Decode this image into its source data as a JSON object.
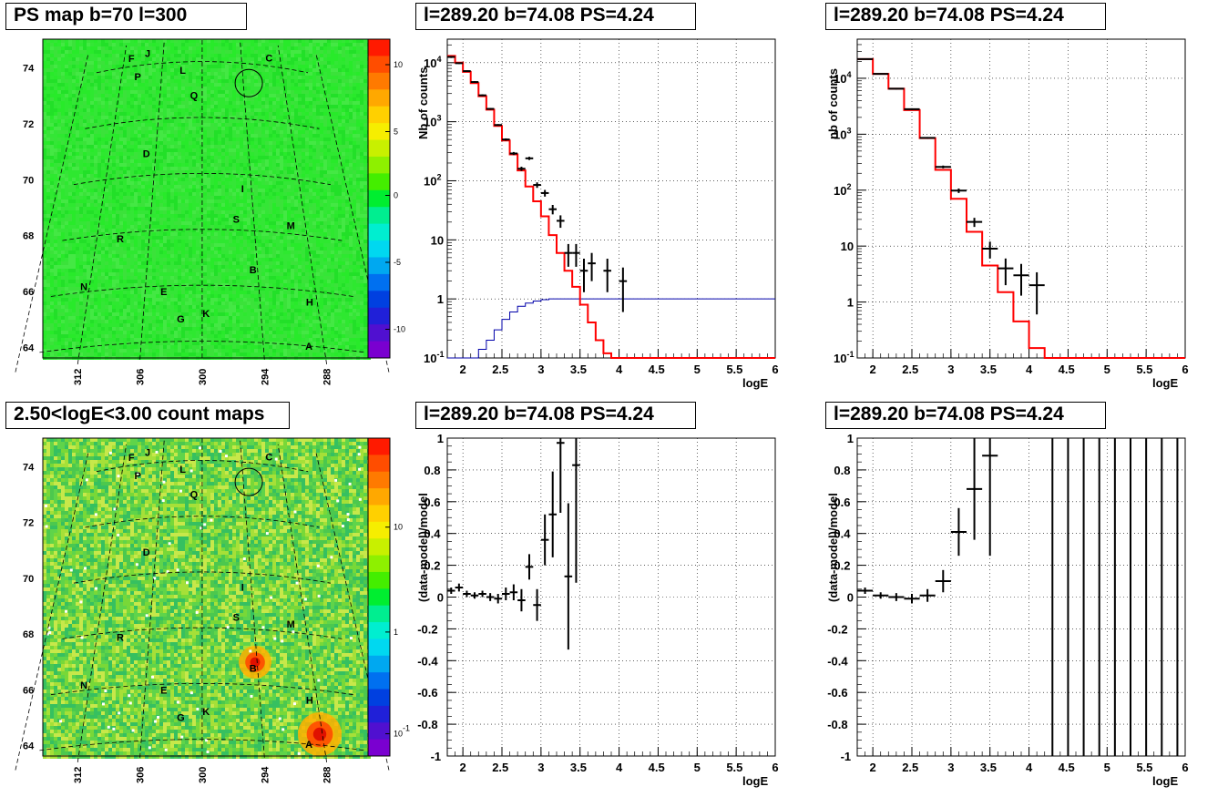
{
  "titles": {
    "map1": "PS map b=70 l=300",
    "map2": "2.50<logE<3.00 count maps",
    "plot1": "l=289.20 b=74.08 PS=4.24",
    "plot2": "l=289.20 b=74.08 PS=4.24",
    "plot3": "l=289.20 b=74.08 PS=4.24",
    "plot4": "l=289.20 b=74.08 PS=4.24"
  },
  "maps": {
    "y_ticks": [
      "74",
      "72",
      "70",
      "68",
      "66",
      "64"
    ],
    "x_ticks": [
      "312",
      "306",
      "300",
      "294",
      "288"
    ],
    "sources": [
      {
        "id": "F",
        "l": 310.8,
        "b": 74.3
      },
      {
        "id": "J",
        "l": 308.3,
        "b": 74.4
      },
      {
        "id": "P",
        "l": 309.5,
        "b": 73.6
      },
      {
        "id": "L",
        "l": 302.8,
        "b": 73.7
      },
      {
        "id": "C",
        "l": 289.7,
        "b": 74.3
      },
      {
        "id": "Q",
        "l": 301.2,
        "b": 72.8
      },
      {
        "id": "D",
        "l": 307.2,
        "b": 70.8
      },
      {
        "id": "I",
        "l": 294.8,
        "b": 69.5
      },
      {
        "id": "S",
        "l": 296.0,
        "b": 68.4
      },
      {
        "id": "M",
        "l": 289.8,
        "b": 68.3
      },
      {
        "id": "R",
        "l": 309.3,
        "b": 67.8
      },
      {
        "id": "B",
        "l": 294.5,
        "b": 66.6
      },
      {
        "id": "N",
        "l": 312.6,
        "b": 66.2
      },
      {
        "id": "E",
        "l": 304.0,
        "b": 65.8
      },
      {
        "id": "H",
        "l": 288.8,
        "b": 65.6
      },
      {
        "id": "G",
        "l": 302.2,
        "b": 64.8
      },
      {
        "id": "K",
        "l": 299.6,
        "b": 65.0
      },
      {
        "id": "A",
        "l": 289.5,
        "b": 64.0
      }
    ],
    "circle": {
      "l": 293.2,
      "b": 73.3
    },
    "ps_colorbar_ticks": [
      "10",
      "5",
      "0",
      "-5",
      "-10"
    ],
    "count_colorbar_ticks": [
      "10",
      "1",
      "10^-1"
    ],
    "colors": {
      "ps_background": "#2ee830",
      "count_background": "#5fd44a",
      "hot": "#ff2a00",
      "grid": "#000000"
    }
  },
  "chart_data": [
    {
      "type": "line",
      "id": "plot1",
      "title": "l=289.20 b=74.08 PS=4.24",
      "xlabel": "logE",
      "ylabel": "Nb of counts",
      "yscale": "log",
      "xlim": [
        1.8,
        6.0
      ],
      "ylim": [
        0.1,
        25000
      ],
      "grid": true,
      "x_ticks": [
        "2",
        "2.5",
        "3",
        "3.5",
        "4",
        "4.5",
        "5",
        "5.5",
        "6"
      ],
      "y_ticks": [
        "10^-1",
        "1",
        "10",
        "10^2",
        "10^3",
        "10^4"
      ],
      "model_step": {
        "color": "#ff0000",
        "bin_edges": [
          1.8,
          1.9,
          2.0,
          2.1,
          2.2,
          2.3,
          2.4,
          2.5,
          2.6,
          2.7,
          2.8,
          2.9,
          3.0,
          3.1,
          3.2,
          3.3,
          3.4,
          3.5,
          3.6,
          3.7,
          3.8,
          3.9,
          4.0,
          4.1,
          4.2,
          4.3,
          6.0
        ],
        "values": [
          13000,
          10000,
          7000,
          4500,
          2700,
          1600,
          850,
          480,
          280,
          150,
          80,
          45,
          25,
          12,
          6,
          3,
          1.6,
          0.8,
          0.4,
          0.2,
          0.12,
          0.1,
          0.1,
          0.1,
          0.1,
          0.1
        ]
      },
      "exposure_step": {
        "color": "#0000aa",
        "bin_edges": [
          1.8,
          2.1,
          2.2,
          2.3,
          2.4,
          2.5,
          2.6,
          2.7,
          2.8,
          2.9,
          3.0,
          3.1,
          6.0
        ],
        "values": [
          0.1,
          0.1,
          0.14,
          0.2,
          0.3,
          0.45,
          0.6,
          0.75,
          0.85,
          0.92,
          0.97,
          1.0
        ]
      },
      "data_points": [
        {
          "x": 1.85,
          "y": 12500,
          "xe": 0.05,
          "ylo": 12000,
          "yhi": 13000
        },
        {
          "x": 1.95,
          "y": 9800,
          "xe": 0.05,
          "ylo": 9500,
          "yhi": 10100
        },
        {
          "x": 2.05,
          "y": 7200,
          "xe": 0.05,
          "ylo": 7000,
          "yhi": 7400
        },
        {
          "x": 2.15,
          "y": 4700,
          "xe": 0.05,
          "ylo": 4550,
          "yhi": 4850
        },
        {
          "x": 2.25,
          "y": 2800,
          "xe": 0.05,
          "ylo": 2700,
          "yhi": 2900
        },
        {
          "x": 2.35,
          "y": 1650,
          "xe": 0.05,
          "ylo": 1590,
          "yhi": 1710
        },
        {
          "x": 2.45,
          "y": 880,
          "xe": 0.05,
          "ylo": 850,
          "yhi": 910
        },
        {
          "x": 2.55,
          "y": 500,
          "xe": 0.05,
          "ylo": 478,
          "yhi": 522
        },
        {
          "x": 2.65,
          "y": 290,
          "xe": 0.05,
          "ylo": 273,
          "yhi": 307
        },
        {
          "x": 2.75,
          "y": 160,
          "xe": 0.05,
          "ylo": 147,
          "yhi": 173
        },
        {
          "x": 2.85,
          "y": 240,
          "xe": 0.05,
          "ylo": 225,
          "yhi": 255
        },
        {
          "x": 2.95,
          "y": 85,
          "xe": 0.05,
          "ylo": 76,
          "yhi": 94
        },
        {
          "x": 3.05,
          "y": 62,
          "xe": 0.05,
          "ylo": 54,
          "yhi": 70
        },
        {
          "x": 3.15,
          "y": 33,
          "xe": 0.05,
          "ylo": 27,
          "yhi": 39
        },
        {
          "x": 3.25,
          "y": 21,
          "xe": 0.05,
          "ylo": 16,
          "yhi": 26
        },
        {
          "x": 3.35,
          "y": 6,
          "xe": 0.05,
          "ylo": 3.5,
          "yhi": 8.5
        },
        {
          "x": 3.45,
          "y": 6,
          "xe": 0.05,
          "ylo": 3.5,
          "yhi": 8.5
        },
        {
          "x": 3.55,
          "y": 3,
          "xe": 0.05,
          "ylo": 1.3,
          "yhi": 4.8
        },
        {
          "x": 3.65,
          "y": 4,
          "xe": 0.05,
          "ylo": 2,
          "yhi": 6
        },
        {
          "x": 3.85,
          "y": 3,
          "xe": 0.05,
          "ylo": 1.3,
          "yhi": 4.8
        },
        {
          "x": 4.05,
          "y": 2,
          "xe": 0.05,
          "ylo": 0.6,
          "yhi": 3.4
        }
      ]
    },
    {
      "type": "line",
      "id": "plot2",
      "title": "l=289.20 b=74.08 PS=4.24",
      "xlabel": "logE",
      "ylabel": "nb of counts",
      "yscale": "log",
      "xlim": [
        1.8,
        6.0
      ],
      "ylim": [
        0.1,
        50000
      ],
      "grid": true,
      "x_ticks": [
        "2",
        "2.5",
        "3",
        "3.5",
        "4",
        "4.5",
        "5",
        "5.5",
        "6"
      ],
      "y_ticks": [
        "10^-1",
        "1",
        "10",
        "10^2",
        "10^3",
        "10^4"
      ],
      "model_step": {
        "color": "#ff0000",
        "bin_edges": [
          1.8,
          2.0,
          2.2,
          2.4,
          2.6,
          2.8,
          3.0,
          3.2,
          3.4,
          3.6,
          3.8,
          4.0,
          4.2,
          6.0
        ],
        "values": [
          22000,
          12000,
          6500,
          2700,
          850,
          230,
          70,
          18,
          4.5,
          1.5,
          0.45,
          0.15,
          0.1
        ]
      },
      "data_points": [
        {
          "x": 1.9,
          "y": 22000,
          "xe": 0.1,
          "ylo": 21500,
          "yhi": 22500
        },
        {
          "x": 2.1,
          "y": 12000,
          "xe": 0.1,
          "ylo": 11700,
          "yhi": 12300
        },
        {
          "x": 2.3,
          "y": 6500,
          "xe": 0.1,
          "ylo": 6300,
          "yhi": 6700
        },
        {
          "x": 2.5,
          "y": 2800,
          "xe": 0.1,
          "ylo": 2700,
          "yhi": 2900
        },
        {
          "x": 2.7,
          "y": 860,
          "xe": 0.1,
          "ylo": 830,
          "yhi": 890
        },
        {
          "x": 2.9,
          "y": 260,
          "xe": 0.1,
          "ylo": 245,
          "yhi": 275
        },
        {
          "x": 3.1,
          "y": 98,
          "xe": 0.1,
          "ylo": 89,
          "yhi": 107
        },
        {
          "x": 3.3,
          "y": 27,
          "xe": 0.1,
          "ylo": 22,
          "yhi": 32
        },
        {
          "x": 3.5,
          "y": 9,
          "xe": 0.1,
          "ylo": 6,
          "yhi": 12
        },
        {
          "x": 3.7,
          "y": 4,
          "xe": 0.1,
          "ylo": 2,
          "yhi": 6
        },
        {
          "x": 3.9,
          "y": 3,
          "xe": 0.1,
          "ylo": 1.3,
          "yhi": 4.8
        },
        {
          "x": 4.1,
          "y": 2,
          "xe": 0.1,
          "ylo": 0.6,
          "yhi": 3.4
        }
      ]
    },
    {
      "type": "scatter",
      "id": "plot3",
      "title": "l=289.20 b=74.08 PS=4.24",
      "xlabel": "logE",
      "ylabel": "(data-model)/model",
      "xlim": [
        1.8,
        6.0
      ],
      "ylim": [
        -1,
        1
      ],
      "grid": true,
      "x_ticks": [
        "2",
        "2.5",
        "3",
        "3.5",
        "4",
        "4.5",
        "5",
        "5.5",
        "6"
      ],
      "y_ticks": [
        "-1",
        "-0.8",
        "-0.6",
        "-0.4",
        "-0.2",
        "0",
        "0.2",
        "0.4",
        "0.6",
        "0.8",
        "1"
      ],
      "data_points": [
        {
          "x": 1.85,
          "y": 0.04,
          "xe": 0.05,
          "ye": 0.02
        },
        {
          "x": 1.95,
          "y": 0.06,
          "xe": 0.05,
          "ye": 0.025
        },
        {
          "x": 2.05,
          "y": 0.02,
          "xe": 0.05,
          "ye": 0.02
        },
        {
          "x": 2.15,
          "y": 0.01,
          "xe": 0.05,
          "ye": 0.02
        },
        {
          "x": 2.25,
          "y": 0.02,
          "xe": 0.05,
          "ye": 0.02
        },
        {
          "x": 2.35,
          "y": 0.0,
          "xe": 0.05,
          "ye": 0.025
        },
        {
          "x": 2.45,
          "y": -0.01,
          "xe": 0.05,
          "ye": 0.03
        },
        {
          "x": 2.55,
          "y": 0.02,
          "xe": 0.05,
          "ye": 0.04
        },
        {
          "x": 2.65,
          "y": 0.03,
          "xe": 0.05,
          "ye": 0.05
        },
        {
          "x": 2.75,
          "y": -0.02,
          "xe": 0.05,
          "ye": 0.07
        },
        {
          "x": 2.85,
          "y": 0.19,
          "xe": 0.05,
          "ye": 0.08
        },
        {
          "x": 2.95,
          "y": -0.05,
          "xe": 0.05,
          "ye": 0.1
        },
        {
          "x": 3.05,
          "y": 0.36,
          "xe": 0.05,
          "ye": 0.16
        },
        {
          "x": 3.15,
          "y": 0.52,
          "xe": 0.05,
          "ye": 0.27
        },
        {
          "x": 3.25,
          "y": 0.97,
          "xe": 0.05,
          "ye": 0.44
        },
        {
          "x": 3.35,
          "y": 0.13,
          "xe": 0.05,
          "ye": 0.46
        },
        {
          "x": 3.45,
          "y": 0.83,
          "xe": 0.05,
          "ye": 0.74
        }
      ]
    },
    {
      "type": "scatter",
      "id": "plot4",
      "title": "l=289.20 b=74.08 PS=4.24",
      "xlabel": "logE",
      "ylabel": "(data-model)/model",
      "xlim": [
        1.8,
        6.0
      ],
      "ylim": [
        -1,
        1
      ],
      "grid": true,
      "x_ticks": [
        "2",
        "2.5",
        "3",
        "3.5",
        "4",
        "4.5",
        "5",
        "5.5",
        "6"
      ],
      "y_ticks": [
        "-1",
        "-0.8",
        "-0.6",
        "-0.4",
        "-0.2",
        "0",
        "0.2",
        "0.4",
        "0.6",
        "0.8",
        "1"
      ],
      "data_points": [
        {
          "x": 1.9,
          "y": 0.04,
          "xe": 0.1,
          "ye": 0.02
        },
        {
          "x": 2.1,
          "y": 0.01,
          "xe": 0.1,
          "ye": 0.02
        },
        {
          "x": 2.3,
          "y": 0.0,
          "xe": 0.1,
          "ye": 0.025
        },
        {
          "x": 2.5,
          "y": -0.01,
          "xe": 0.1,
          "ye": 0.03
        },
        {
          "x": 2.7,
          "y": 0.01,
          "xe": 0.1,
          "ye": 0.04
        },
        {
          "x": 2.9,
          "y": 0.1,
          "xe": 0.1,
          "ye": 0.07
        },
        {
          "x": 3.1,
          "y": 0.41,
          "xe": 0.1,
          "ye": 0.15
        },
        {
          "x": 3.3,
          "y": 0.68,
          "xe": 0.1,
          "ye": 0.32
        },
        {
          "x": 3.5,
          "y": 0.89,
          "xe": 0.1,
          "ye": 0.63
        }
      ],
      "full_range_errors_x": [
        4.3,
        4.5,
        4.7,
        4.9,
        5.1,
        5.3,
        5.5,
        5.7,
        5.9
      ]
    }
  ]
}
